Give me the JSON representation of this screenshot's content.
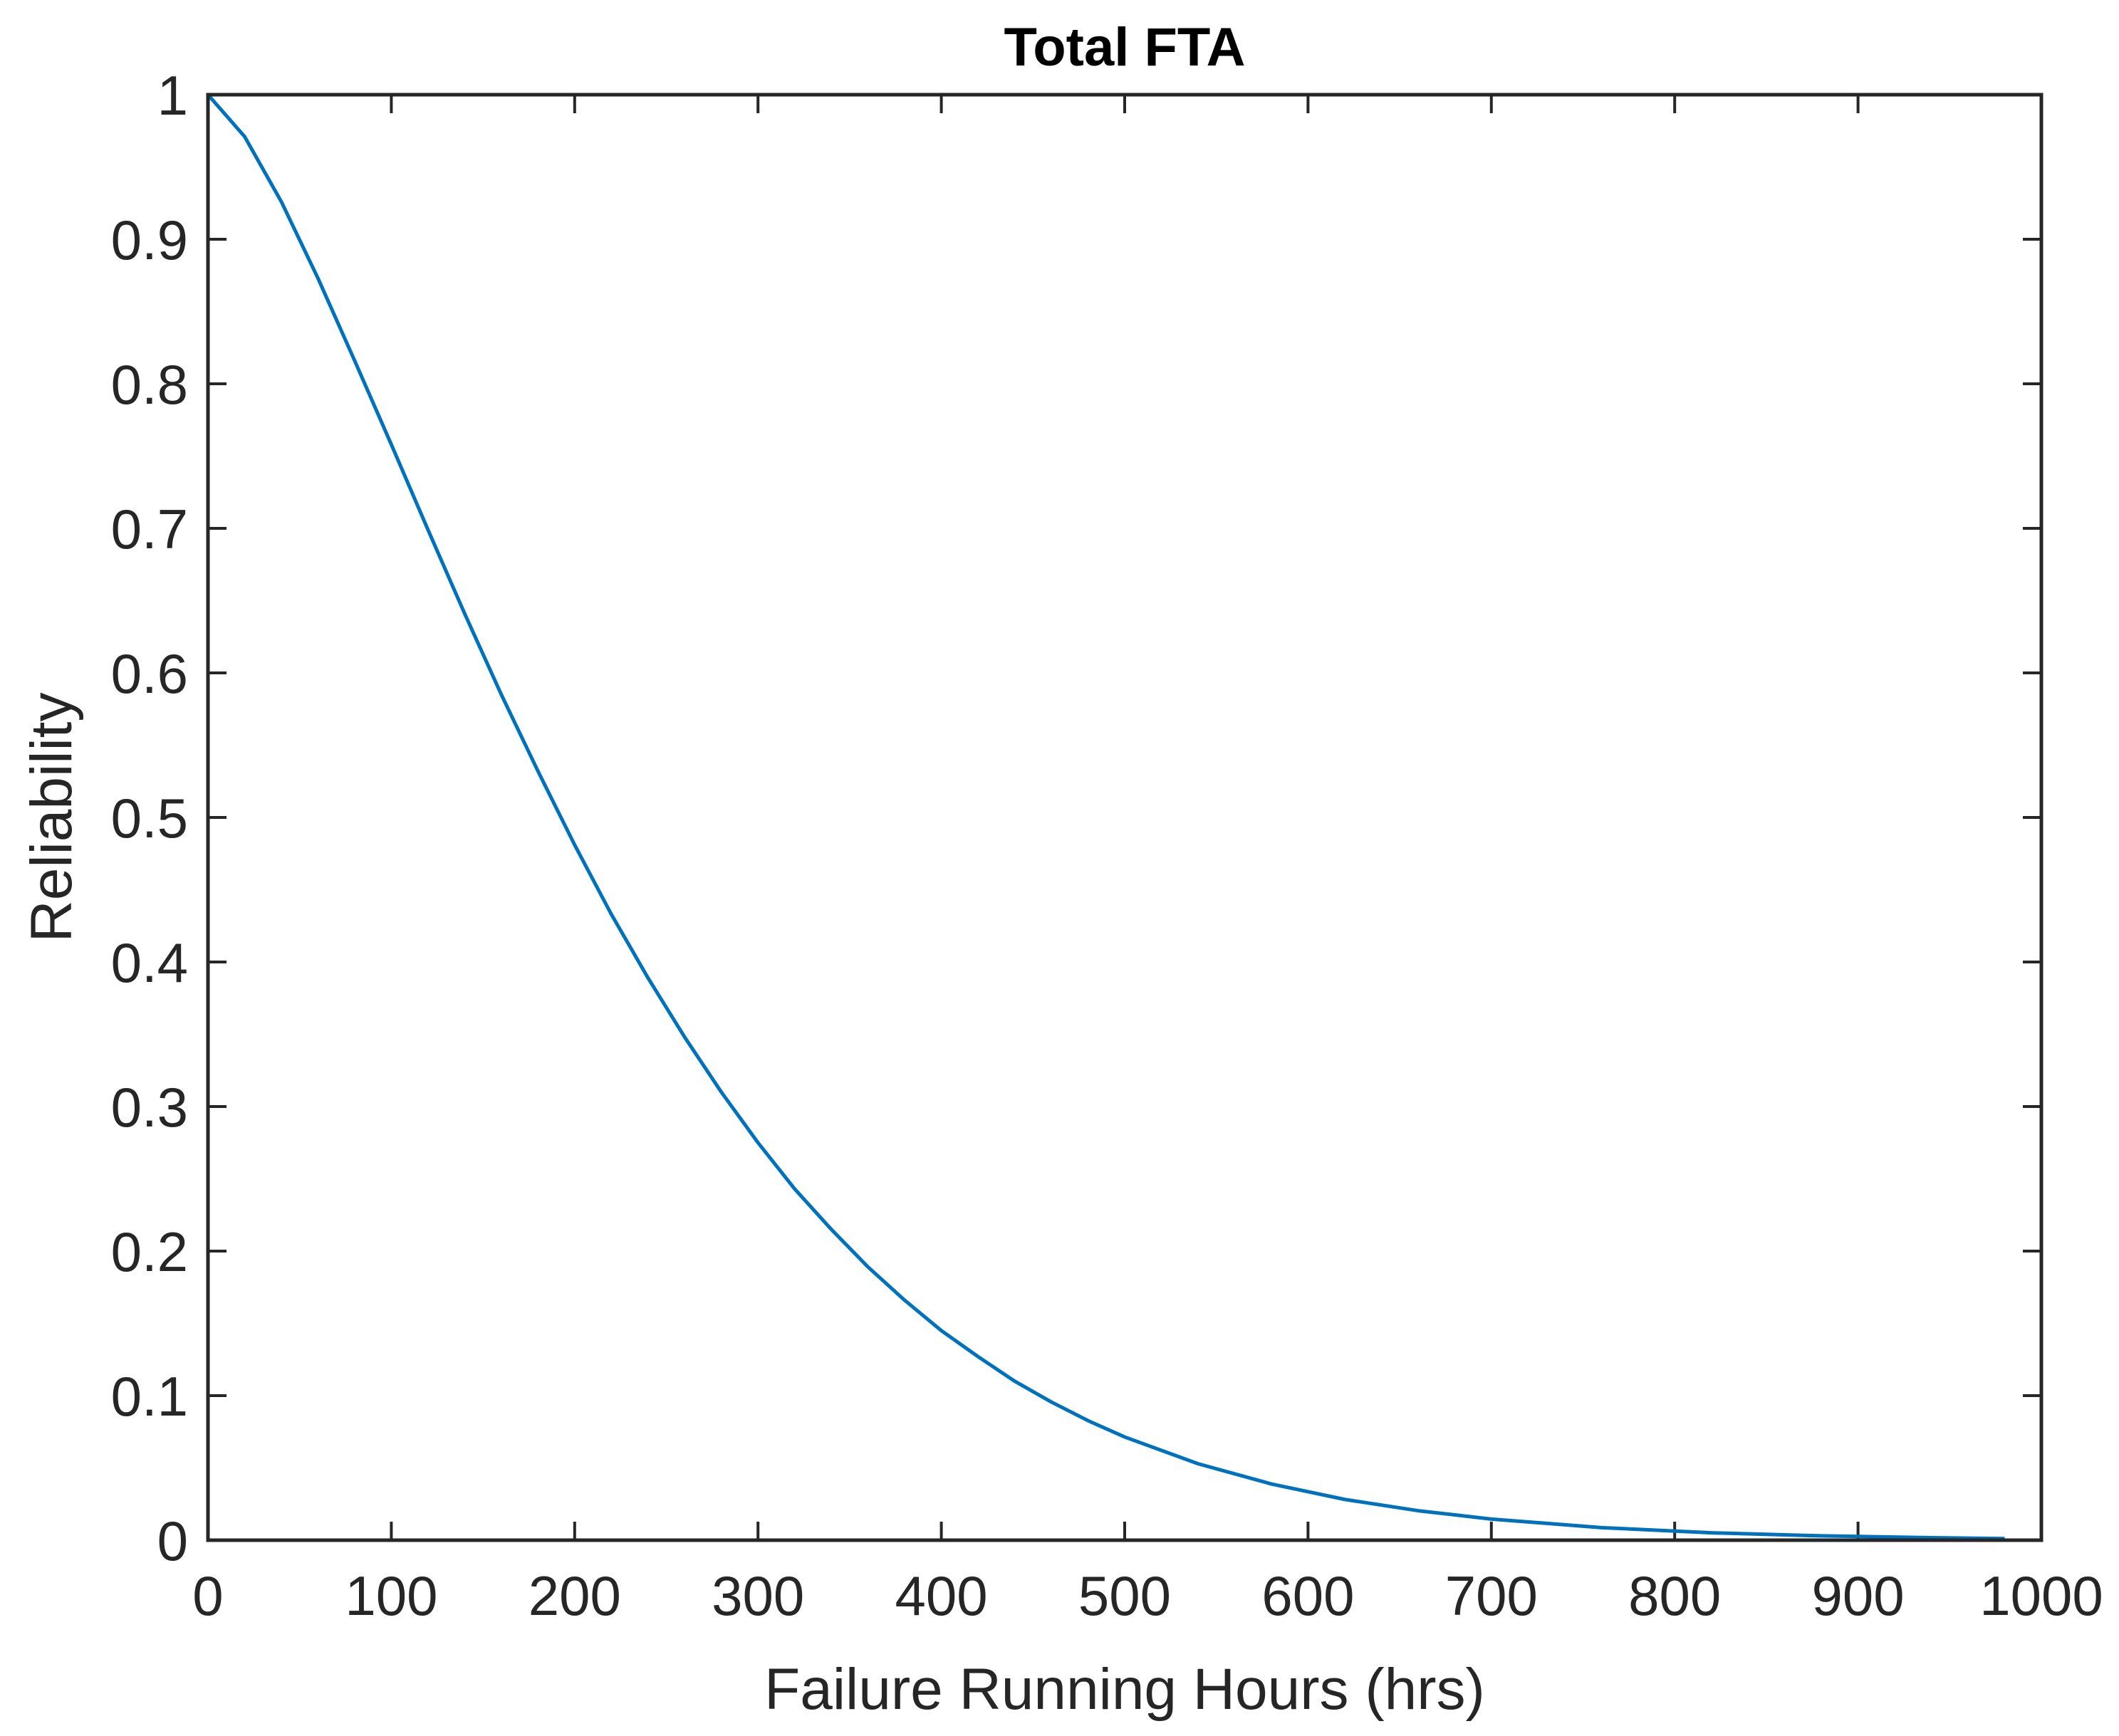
{
  "chart_data": {
    "type": "line",
    "title": "Total FTA",
    "xlabel": "Failure Running Hours (hrs)",
    "ylabel": "Reliability",
    "xlim": [
      0,
      1000
    ],
    "ylim": [
      0,
      1
    ],
    "xticks": [
      "0",
      "100",
      "200",
      "300",
      "400",
      "500",
      "600",
      "700",
      "800",
      "900",
      "1000"
    ],
    "yticks": [
      "0",
      "0.1",
      "0.2",
      "0.3",
      "0.4",
      "0.5",
      "0.6",
      "0.7",
      "0.8",
      "0.9",
      "1"
    ],
    "grid": false,
    "line_color": "#0072BD",
    "series": [
      {
        "x": [
          0,
          20,
          40,
          60,
          80,
          100,
          120,
          140,
          160,
          180,
          200,
          220,
          240,
          260,
          280,
          300,
          320,
          340,
          360,
          380,
          400,
          420,
          440,
          460,
          480,
          500,
          540,
          580,
          620,
          660,
          700,
          760,
          820,
          880,
          940,
          980
        ],
        "y": [
          1,
          0.971,
          0.926,
          0.873,
          0.816,
          0.758,
          0.699,
          0.641,
          0.585,
          0.532,
          0.481,
          0.433,
          0.389,
          0.348,
          0.31,
          0.275,
          0.243,
          0.215,
          0.189,
          0.166,
          0.145,
          0.127,
          0.11,
          0.0956,
          0.0827,
          0.0714,
          0.0529,
          0.0389,
          0.0282,
          0.0204,
          0.0146,
          0.0087,
          0.0051,
          0.003,
          0.0017,
          0.0011
        ]
      }
    ]
  }
}
